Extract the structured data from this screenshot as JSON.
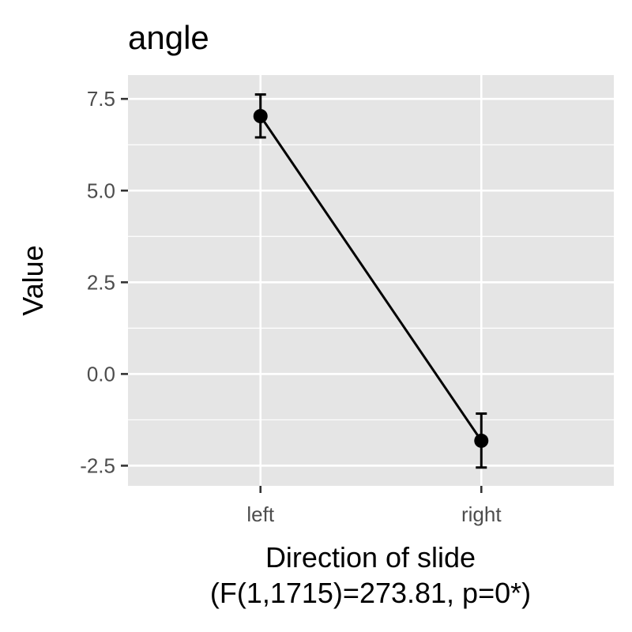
{
  "chart_data": {
    "type": "line",
    "title": "angle",
    "xlabel": "Direction of slide",
    "xlabel_line2": "(F(1,1715)=273.81, p=0*)",
    "ylabel": "Value",
    "categories": [
      "left",
      "right"
    ],
    "series": [
      {
        "name": "angle",
        "values": [
          7.03,
          -1.82
        ],
        "error_low": [
          6.45,
          -2.55
        ],
        "error_high": [
          7.62,
          -1.08
        ]
      }
    ],
    "ylim": [
      -3.05,
      8.15
    ],
    "y_ticks": [
      -2.5,
      0.0,
      2.5,
      5.0,
      7.5
    ],
    "y_tick_labels": [
      "-2.5",
      "0.0",
      "2.5",
      "5.0",
      "7.5"
    ],
    "grid": true,
    "colors": {
      "panel": "#e5e5e5",
      "grid": "#ffffff",
      "series": "#000000",
      "tick": "#333333"
    }
  }
}
